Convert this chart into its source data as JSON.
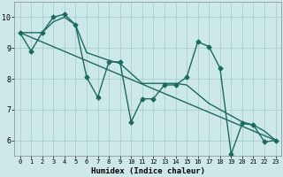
{
  "xlabel": "Humidex (Indice chaleur)",
  "bg_color": "#cce8e8",
  "grid_color": "#aacece",
  "line_color": "#1a6a60",
  "zigzag_x": [
    0,
    1,
    2,
    3,
    4,
    5,
    6,
    7,
    8,
    9,
    10,
    11,
    12,
    13,
    14,
    15,
    16,
    17,
    18,
    19,
    20,
    21,
    22,
    23
  ],
  "zigzag_y": [
    9.5,
    8.9,
    9.5,
    10.0,
    10.1,
    9.75,
    8.05,
    7.4,
    8.55,
    8.55,
    6.6,
    7.35,
    7.35,
    7.8,
    7.8,
    8.05,
    9.2,
    9.05,
    8.35,
    5.55,
    6.55,
    6.5,
    5.95,
    6.0
  ],
  "trend1_x": [
    0,
    2,
    3,
    4,
    5,
    6,
    8,
    9,
    11,
    12,
    13,
    14,
    15,
    17,
    18,
    19,
    20,
    21,
    22,
    23
  ],
  "trend1_y": [
    9.5,
    9.5,
    9.85,
    10.0,
    9.75,
    8.85,
    8.6,
    8.5,
    7.85,
    7.85,
    7.85,
    7.85,
    7.8,
    7.2,
    7.0,
    6.8,
    6.6,
    6.5,
    6.3,
    6.0
  ],
  "trend2_x": [
    0,
    23
  ],
  "trend2_y": [
    9.5,
    6.0
  ],
  "xlim": [
    -0.5,
    23.5
  ],
  "ylim": [
    5.5,
    10.5
  ],
  "xticks": [
    0,
    1,
    2,
    3,
    4,
    5,
    6,
    7,
    8,
    9,
    10,
    11,
    12,
    13,
    14,
    15,
    16,
    17,
    18,
    19,
    20,
    21,
    22,
    23
  ],
  "yticks": [
    6,
    7,
    8,
    9,
    10
  ],
  "marker_size": 2.5,
  "line_width": 1.0
}
